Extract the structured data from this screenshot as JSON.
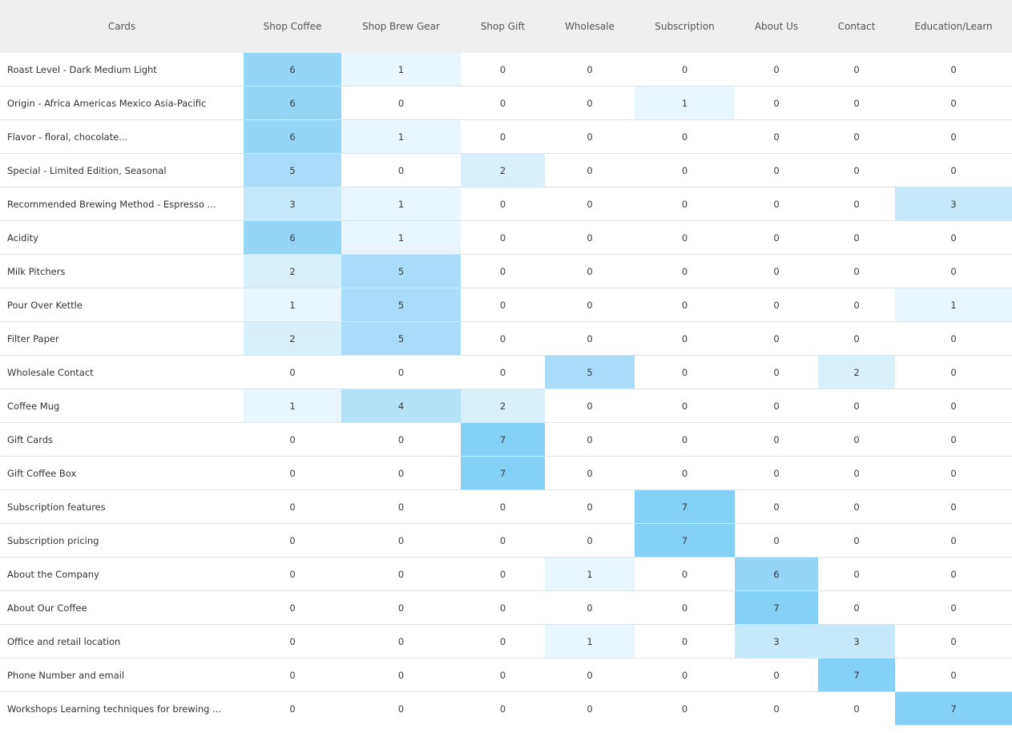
{
  "chart_data": {
    "type": "heatmap",
    "corner_label": "Cards",
    "columns": [
      "Shop Coffee",
      "Shop Brew Gear",
      "Shop Gift",
      "Wholesale",
      "Subscription",
      "About Us",
      "Contact",
      "Education/Learn"
    ],
    "rows": [
      {
        "label": "Roast Level  - Dark Medium Light",
        "values": [
          6,
          1,
          0,
          0,
          0,
          0,
          0,
          0
        ]
      },
      {
        "label": "Origin - Africa Americas Mexico Asia-Pacific",
        "values": [
          6,
          0,
          0,
          0,
          1,
          0,
          0,
          0
        ]
      },
      {
        "label": "Flavor - floral, chocolate...",
        "values": [
          6,
          1,
          0,
          0,
          0,
          0,
          0,
          0
        ]
      },
      {
        "label": "Special - Limited Edition, Seasonal",
        "values": [
          5,
          0,
          2,
          0,
          0,
          0,
          0,
          0
        ]
      },
      {
        "label": "Recommended Brewing Method - Espresso ...",
        "values": [
          3,
          1,
          0,
          0,
          0,
          0,
          0,
          3
        ]
      },
      {
        "label": "Acidity",
        "values": [
          6,
          1,
          0,
          0,
          0,
          0,
          0,
          0
        ]
      },
      {
        "label": "Milk Pitchers",
        "values": [
          2,
          5,
          0,
          0,
          0,
          0,
          0,
          0
        ]
      },
      {
        "label": "Pour Over Kettle",
        "values": [
          1,
          5,
          0,
          0,
          0,
          0,
          0,
          1
        ]
      },
      {
        "label": "Filter Paper",
        "values": [
          2,
          5,
          0,
          0,
          0,
          0,
          0,
          0
        ]
      },
      {
        "label": "Wholesale Contact",
        "values": [
          0,
          0,
          0,
          5,
          0,
          0,
          2,
          0
        ]
      },
      {
        "label": "Coffee Mug",
        "values": [
          1,
          4,
          2,
          0,
          0,
          0,
          0,
          0
        ]
      },
      {
        "label": "Gift Cards",
        "values": [
          0,
          0,
          7,
          0,
          0,
          0,
          0,
          0
        ]
      },
      {
        "label": "Gift Coffee Box",
        "values": [
          0,
          0,
          7,
          0,
          0,
          0,
          0,
          0
        ]
      },
      {
        "label": "Subscription features",
        "values": [
          0,
          0,
          0,
          0,
          7,
          0,
          0,
          0
        ]
      },
      {
        "label": "Subscription pricing",
        "values": [
          0,
          0,
          0,
          0,
          7,
          0,
          0,
          0
        ]
      },
      {
        "label": "About the Company",
        "values": [
          0,
          0,
          0,
          1,
          0,
          6,
          0,
          0
        ]
      },
      {
        "label": "About Our Coffee",
        "values": [
          0,
          0,
          0,
          0,
          0,
          7,
          0,
          0
        ]
      },
      {
        "label": "Office and retail location",
        "values": [
          0,
          0,
          0,
          1,
          0,
          3,
          3,
          0
        ]
      },
      {
        "label": "Phone Number and email",
        "values": [
          0,
          0,
          0,
          0,
          0,
          0,
          7,
          0
        ]
      },
      {
        "label": "Workshops Learning techniques for brewing ...",
        "values": [
          0,
          0,
          0,
          0,
          0,
          0,
          0,
          7
        ]
      }
    ],
    "value_range": [
      0,
      7
    ],
    "colors": {
      "header_bg": "#efefef",
      "zero": "#ffffff",
      "1": "#eaf6fd",
      "2": "#d8f0fc",
      "3": "#c5e8fa",
      "4": "#b6e2f8",
      "5": "#a8dcf8",
      "6": "#95d5f6",
      "7": "#84d0f6"
    }
  }
}
